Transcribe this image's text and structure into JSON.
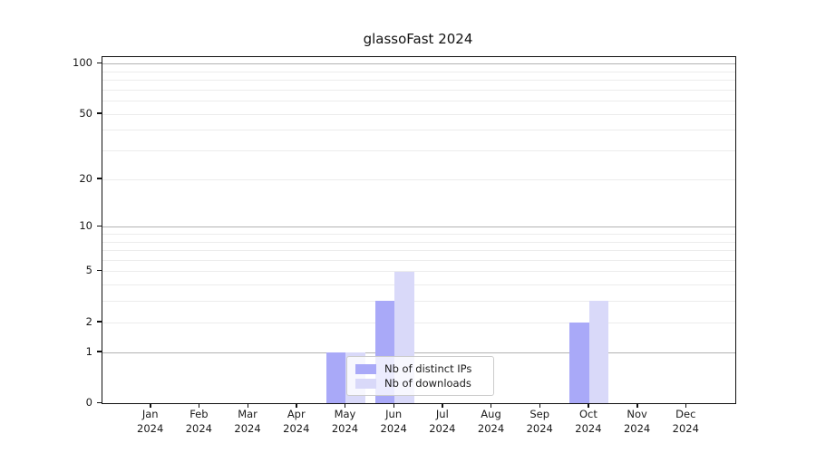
{
  "title": "glassoFast 2024",
  "chart_data": {
    "type": "bar",
    "title": "glassoFast 2024",
    "categories": [
      "Jan 2024",
      "Feb 2024",
      "Mar 2024",
      "Apr 2024",
      "May 2024",
      "Jun 2024",
      "Jul 2024",
      "Aug 2024",
      "Sep 2024",
      "Oct 2024",
      "Nov 2024",
      "Dec 2024"
    ],
    "month_labels": [
      {
        "month": "Jan",
        "year": "2024"
      },
      {
        "month": "Feb",
        "year": "2024"
      },
      {
        "month": "Mar",
        "year": "2024"
      },
      {
        "month": "Apr",
        "year": "2024"
      },
      {
        "month": "May",
        "year": "2024"
      },
      {
        "month": "Jun",
        "year": "2024"
      },
      {
        "month": "Jul",
        "year": "2024"
      },
      {
        "month": "Aug",
        "year": "2024"
      },
      {
        "month": "Sep",
        "year": "2024"
      },
      {
        "month": "Oct",
        "year": "2024"
      },
      {
        "month": "Nov",
        "year": "2024"
      },
      {
        "month": "Dec",
        "year": "2024"
      }
    ],
    "series": [
      {
        "name": "Nb of distinct IPs",
        "color": "#a9a9f8",
        "values": [
          0,
          0,
          0,
          0,
          1,
          3,
          0,
          0,
          0,
          2,
          0,
          0
        ]
      },
      {
        "name": "Nb of downloads",
        "color": "#d9d9f9",
        "values": [
          0,
          0,
          0,
          0,
          1,
          5,
          0,
          0,
          0,
          3,
          0,
          0
        ]
      }
    ],
    "yticks": [
      0,
      1,
      2,
      5,
      10,
      20,
      50,
      100
    ],
    "ytick_labels": [
      "0",
      "1",
      "2",
      "5",
      "10",
      "20",
      "50",
      "100"
    ],
    "y_major_gridlines": [
      1,
      10,
      100
    ],
    "y_minor_gridlines": [
      2,
      3,
      4,
      5,
      6,
      7,
      8,
      9,
      20,
      30,
      40,
      50,
      60,
      70,
      80,
      90
    ],
    "scale": "log1p",
    "ylim": [
      0,
      110
    ],
    "xlabel": "",
    "ylabel": "",
    "grid": true,
    "legend_position": "lower-center"
  },
  "colors": {
    "distinct_ips_bar": "#a9a9f8",
    "downloads_bar": "#d9d9f9",
    "major_gridline": "#b3b3b3",
    "minor_gridline": "#ececec",
    "axis_spine": "#111111",
    "text": "#1a1a1a",
    "legend_border": "#cccccc",
    "background": "#ffffff"
  }
}
